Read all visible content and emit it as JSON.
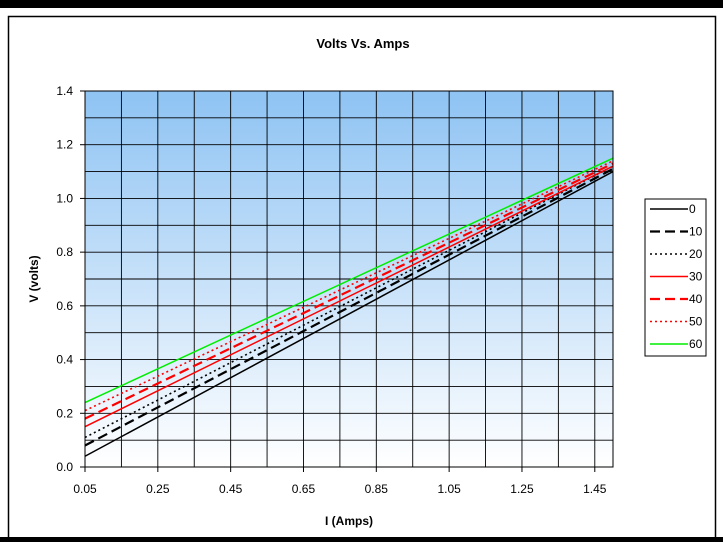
{
  "chart_data": {
    "type": "line",
    "title": "Volts Vs. Amps",
    "xlabel": "I (Amps)",
    "ylabel": "V (volts)",
    "xlim": [
      0.05,
      1.5
    ],
    "ylim": [
      0,
      1.4
    ],
    "x_ticks": [
      "0.05",
      "0.25",
      "0.45",
      "0.65",
      "0.85",
      "1.05",
      "1.25",
      "1.45"
    ],
    "y_ticks": [
      "0.0",
      "0.2",
      "0.4",
      "0.6",
      "0.8",
      "1.0",
      "1.2",
      "1.4"
    ],
    "grid": true,
    "legend_position": "right",
    "x": [
      0.05,
      1.5
    ],
    "series": [
      {
        "name": "0",
        "values": [
          0.04,
          1.1
        ],
        "color": "#000000",
        "dash": "solid"
      },
      {
        "name": "10",
        "values": [
          0.08,
          1.11
        ],
        "color": "#000000",
        "dash": "long-dash"
      },
      {
        "name": "20",
        "values": [
          0.11,
          1.12
        ],
        "color": "#000000",
        "dash": "dotted"
      },
      {
        "name": "30",
        "values": [
          0.15,
          1.12
        ],
        "color": "#ff0000",
        "dash": "solid"
      },
      {
        "name": "40",
        "values": [
          0.18,
          1.13
        ],
        "color": "#ff0000",
        "dash": "long-dash"
      },
      {
        "name": "50",
        "values": [
          0.21,
          1.14
        ],
        "color": "#ff0000",
        "dash": "dotted"
      },
      {
        "name": "60",
        "values": [
          0.24,
          1.15
        ],
        "color": "#00ee00",
        "dash": "solid"
      }
    ],
    "plot_background_top": "#8ec3f3",
    "plot_background_bottom": "#ffffff"
  }
}
